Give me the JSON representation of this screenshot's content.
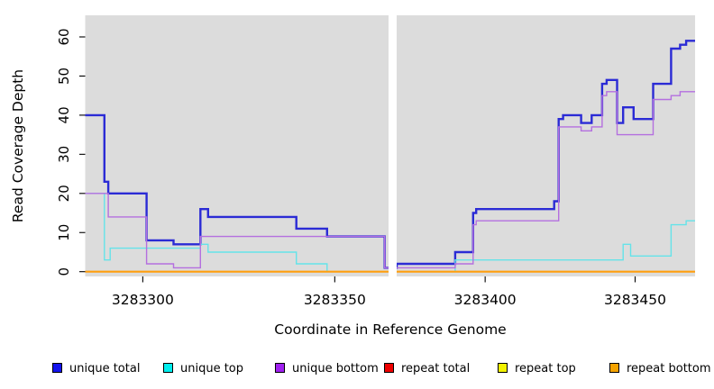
{
  "chart_data": {
    "type": "line",
    "subtype": "step-coverage-plot",
    "title": "",
    "xlabel": "Coordinate in Reference Genome",
    "ylabel": "Read Coverage Depth",
    "ylim": [
      0,
      60
    ],
    "yticks": [
      0,
      10,
      20,
      30,
      40,
      50,
      60
    ],
    "plot_bg": "#dcdcdc",
    "grid": false,
    "legend_position": "bottom",
    "panels": [
      {
        "domain": [
          3283285,
          3283364
        ],
        "xticks": [
          3283300,
          3283350
        ]
      },
      {
        "domain": [
          3283370.5,
          3283470
        ],
        "xticks": [
          3283400,
          3283450
        ]
      }
    ],
    "x_end": 3283470,
    "series": [
      {
        "name": "unique total",
        "color": "#2b2bd5",
        "width": 2.4,
        "points": [
          [
            3283285,
            40
          ],
          [
            3283290,
            23
          ],
          [
            3283291,
            20
          ],
          [
            3283301,
            8
          ],
          [
            3283308,
            7
          ],
          [
            3283315,
            16
          ],
          [
            3283317,
            14
          ],
          [
            3283340,
            11
          ],
          [
            3283348,
            9
          ],
          [
            3283363,
            1
          ],
          [
            3283370.5,
            2
          ],
          [
            3283390,
            5
          ],
          [
            3283396,
            15
          ],
          [
            3283397,
            16
          ],
          [
            3283423,
            18
          ],
          [
            3283424.5,
            39
          ],
          [
            3283426,
            40
          ],
          [
            3283432,
            38
          ],
          [
            3283435.5,
            40
          ],
          [
            3283439,
            48
          ],
          [
            3283440.5,
            49
          ],
          [
            3283444,
            38
          ],
          [
            3283446,
            42
          ],
          [
            3283449.5,
            39
          ],
          [
            3283456,
            48
          ],
          [
            3283462,
            57
          ],
          [
            3283465,
            58
          ],
          [
            3283467,
            59
          ]
        ]
      },
      {
        "name": "unique top",
        "color": "#64e3e9",
        "width": 1.4,
        "points": [
          [
            3283285,
            20
          ],
          [
            3283290,
            3
          ],
          [
            3283291.5,
            6
          ],
          [
            3283315,
            7
          ],
          [
            3283317,
            5
          ],
          [
            3283340,
            2
          ],
          [
            3283348,
            0
          ],
          [
            3283390,
            3
          ],
          [
            3283446,
            7
          ],
          [
            3283448.5,
            4
          ],
          [
            3283462,
            12
          ],
          [
            3283467,
            13
          ]
        ]
      },
      {
        "name": "unique bottom",
        "color": "#b46fdf",
        "width": 1.4,
        "points": [
          [
            3283285,
            20
          ],
          [
            3283291,
            14
          ],
          [
            3283301,
            2
          ],
          [
            3283308,
            1
          ],
          [
            3283315,
            9
          ],
          [
            3283363,
            1
          ],
          [
            3283370.5,
            1
          ],
          [
            3283390,
            2
          ],
          [
            3283396,
            12
          ],
          [
            3283397,
            13
          ],
          [
            3283424.5,
            37
          ],
          [
            3283432,
            36
          ],
          [
            3283435.5,
            37
          ],
          [
            3283439,
            45
          ],
          [
            3283440.5,
            46
          ],
          [
            3283444,
            35
          ],
          [
            3283456,
            44
          ],
          [
            3283462,
            45
          ],
          [
            3283465,
            46
          ]
        ]
      },
      {
        "name": "repeat total",
        "color": "#e00000",
        "width": 1.4,
        "points": [
          [
            3283285,
            0
          ]
        ]
      },
      {
        "name": "repeat top",
        "color": "#f2f200",
        "width": 1.4,
        "points": [
          [
            3283285,
            0
          ]
        ]
      },
      {
        "name": "repeat bottom",
        "color": "#ff9f0e",
        "width": 2.2,
        "points": [
          [
            3283285,
            0
          ]
        ]
      }
    ]
  },
  "legend": {
    "items": [
      {
        "label": "unique total",
        "swatch": "#1414ee"
      },
      {
        "label": "unique top",
        "swatch": "#00eeee"
      },
      {
        "label": "unique bottom",
        "swatch": "#a020f0"
      },
      {
        "label": "repeat total",
        "swatch": "#ee0000"
      },
      {
        "label": "repeat top",
        "swatch": "#f2f200"
      },
      {
        "label": "repeat bottom",
        "swatch": "#f5a300"
      }
    ]
  }
}
